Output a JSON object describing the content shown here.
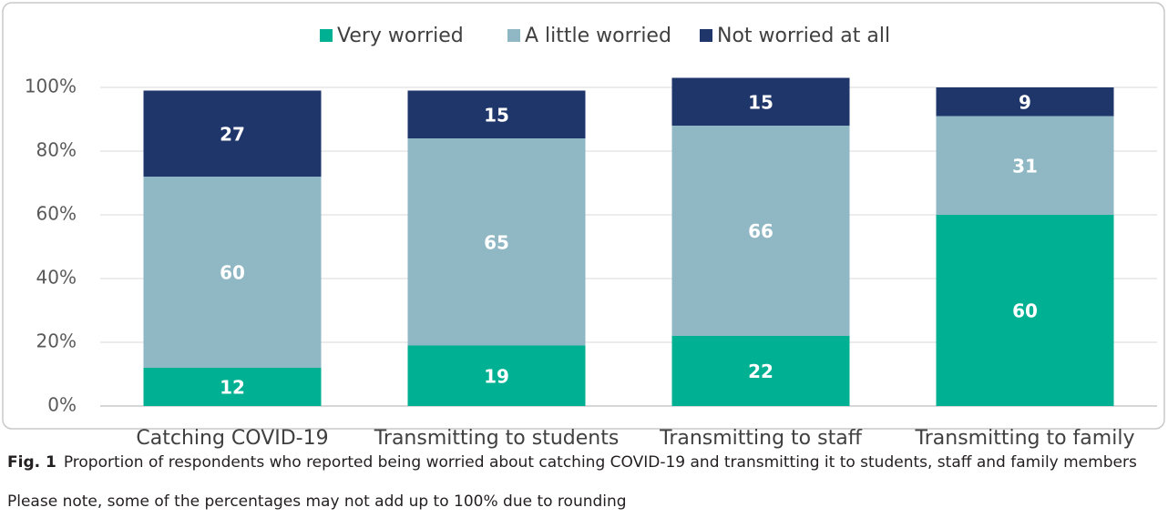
{
  "chart_data": {
    "type": "stacked_bar",
    "categories": [
      "Catching COVID-19",
      "Transmitting to students",
      "Transmitting to staff",
      "Transmitting to family"
    ],
    "series": [
      {
        "name": "Very worried",
        "color": "#00b092",
        "values": [
          12,
          19,
          22,
          60
        ]
      },
      {
        "name": "A little worried",
        "color": "#8fb7c4",
        "values": [
          60,
          65,
          66,
          31
        ]
      },
      {
        "name": "Not worried at all",
        "color": "#1f366b",
        "values": [
          27,
          15,
          15,
          9
        ]
      }
    ],
    "ylim": [
      0,
      100
    ],
    "yticks": [
      {
        "value": 0,
        "label": "0%"
      },
      {
        "value": 20,
        "label": "20%"
      },
      {
        "value": 40,
        "label": "40%"
      },
      {
        "value": 60,
        "label": "60%"
      },
      {
        "value": 80,
        "label": "80%"
      },
      {
        "value": 100,
        "label": "100%"
      }
    ],
    "grid": true,
    "legend": "top",
    "caption_label": "Fig. 1",
    "caption": "Proportion of respondents who reported being worried about catching COVID-19 and transmitting it to students, staff and family members",
    "note": "Please note, some of the percentages may not add up to 100% due to rounding"
  }
}
